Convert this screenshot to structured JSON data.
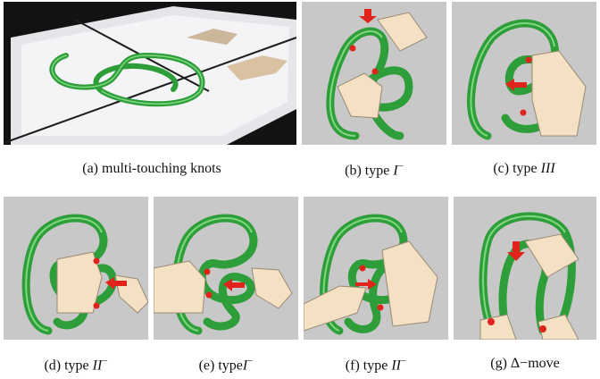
{
  "figure": {
    "panels": [
      {
        "id": "a",
        "caption_prefix": "(a) multi-touching knots",
        "caption_math": "",
        "caption_sup": ""
      },
      {
        "id": "b",
        "caption_prefix": "(b) type ",
        "caption_math": "I",
        "caption_sup": "−"
      },
      {
        "id": "c",
        "caption_prefix": "(c) type ",
        "caption_math": "III",
        "caption_sup": ""
      },
      {
        "id": "d",
        "caption_prefix": "(d) type ",
        "caption_math": "II",
        "caption_sup": "−"
      },
      {
        "id": "e",
        "caption_prefix": "(e) type",
        "caption_math": "I",
        "caption_sup": "−"
      },
      {
        "id": "f",
        "caption_prefix": "(f) type ",
        "caption_math": "II",
        "caption_sup": "−"
      },
      {
        "id": "g",
        "caption_prefix": "(g) Δ−move",
        "caption_math": "",
        "caption_sup": ""
      }
    ]
  },
  "colors": {
    "panel_bg": "#c8c8c8",
    "photo_bg": "#1a1a1a",
    "knot_green": "#2e9e3a",
    "knot_highlight": "#7fd77f",
    "arrow_red": "#e0231b",
    "hand_skin": "#f4e1c3"
  }
}
